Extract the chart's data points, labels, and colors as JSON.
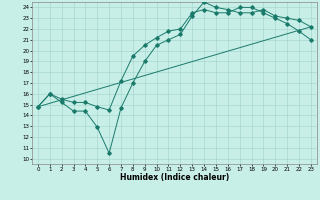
{
  "title": "",
  "xlabel": "Humidex (Indice chaleur)",
  "bg_color": "#c8eee8",
  "grid_color": "#a8d8d0",
  "line_color": "#1a7a6a",
  "xlim": [
    -0.5,
    23.5
  ],
  "ylim": [
    9.5,
    24.5
  ],
  "xticks": [
    0,
    1,
    2,
    3,
    4,
    5,
    6,
    7,
    8,
    9,
    10,
    11,
    12,
    13,
    14,
    15,
    16,
    17,
    18,
    19,
    20,
    21,
    22,
    23
  ],
  "yticks": [
    10,
    11,
    12,
    13,
    14,
    15,
    16,
    17,
    18,
    19,
    20,
    21,
    22,
    23,
    24
  ],
  "line1_x": [
    0,
    1,
    2,
    3,
    4,
    5,
    6,
    7,
    8,
    9,
    10,
    11,
    12,
    13,
    14,
    15,
    16,
    17,
    18,
    19,
    20,
    21,
    22,
    23
  ],
  "line1_y": [
    14.8,
    16.0,
    15.2,
    14.4,
    14.4,
    12.9,
    10.5,
    14.7,
    17.0,
    19.0,
    20.5,
    21.0,
    21.5,
    23.2,
    24.5,
    24.0,
    23.8,
    23.5,
    23.5,
    23.8,
    23.2,
    23.0,
    22.8,
    22.2
  ],
  "line2_x": [
    0,
    1,
    2,
    3,
    4,
    5,
    6,
    7,
    8,
    9,
    10,
    11,
    12,
    13,
    14,
    15,
    16,
    17,
    18,
    19,
    20,
    21,
    22,
    23
  ],
  "line2_y": [
    14.8,
    16.0,
    15.5,
    15.2,
    15.2,
    14.8,
    14.5,
    17.2,
    19.5,
    20.5,
    21.2,
    21.8,
    22.0,
    23.5,
    23.8,
    23.5,
    23.5,
    24.0,
    24.0,
    23.5,
    23.0,
    22.5,
    21.8,
    21.0
  ],
  "line3_x": [
    0,
    23
  ],
  "line3_y": [
    14.8,
    22.2
  ]
}
